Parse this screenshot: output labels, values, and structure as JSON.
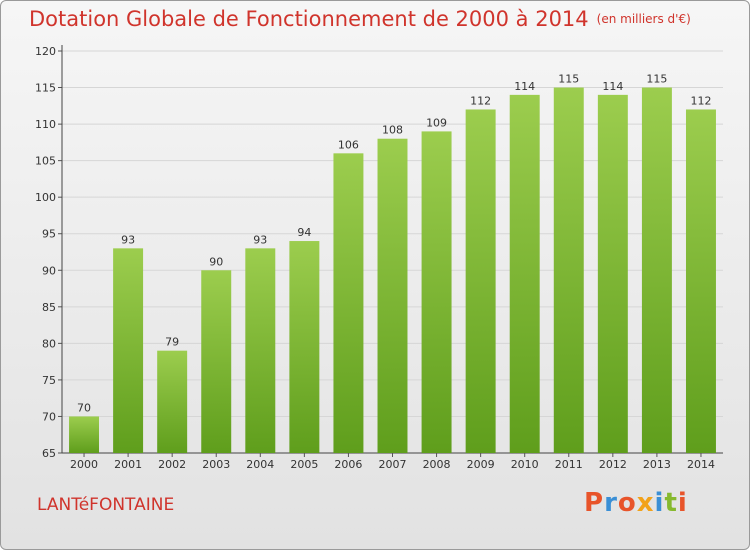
{
  "title": "Dotation Globale de Fonctionnement de 2000 à 2014",
  "unit_note": "(en milliers d'€)",
  "commune": "LANTéFONTAINE",
  "logo": {
    "letters": [
      "P",
      "r",
      "o",
      "x",
      "i",
      "t",
      "i"
    ],
    "colors": [
      "#e8542a",
      "#3a8fd6",
      "#e8542a",
      "#f2a21a",
      "#3a8fd6",
      "#86b92e",
      "#e8542a"
    ]
  },
  "colors": {
    "bar_top": "#9ccd4e",
    "bar_bottom": "#5f9e1c",
    "title": "#d0342c"
  },
  "chart_data": {
    "type": "bar",
    "categories": [
      "2000",
      "2001",
      "2002",
      "2003",
      "2004",
      "2005",
      "2006",
      "2007",
      "2008",
      "2009",
      "2010",
      "2011",
      "2012",
      "2013",
      "2014"
    ],
    "values": [
      70,
      93,
      79,
      90,
      93,
      94,
      106,
      108,
      109,
      112,
      114,
      115,
      114,
      115,
      112
    ],
    "ylim": [
      65,
      120
    ],
    "yticks": [
      65,
      70,
      75,
      80,
      85,
      90,
      95,
      100,
      105,
      110,
      115,
      120
    ],
    "grid": true
  }
}
